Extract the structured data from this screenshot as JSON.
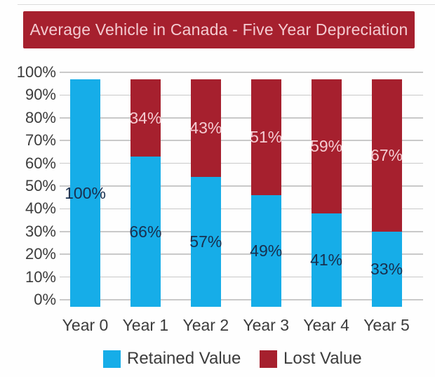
{
  "title": "Average Vehicle in Canada - Five Year Depreciation",
  "colors": {
    "banner_bg": "#a6202e",
    "banner_text": "#f4cbd1",
    "retained": "#16ade8",
    "lost": "#a6202e",
    "retained_label_text": "#182f4e",
    "lost_label_text": "#f4cbd1",
    "axis_text": "#3c3c3c",
    "gridline": "#c9c9c9"
  },
  "chart_data": {
    "type": "bar",
    "stacked": true,
    "title": "Average Vehicle in Canada - Five Year Depreciation",
    "categories": [
      "Year 0",
      "Year 1",
      "Year 2",
      "Year 3",
      "Year 4",
      "Year 5"
    ],
    "series": [
      {
        "name": "Retained Value",
        "color": "#16ade8",
        "values": [
          100,
          66,
          57,
          49,
          41,
          33
        ]
      },
      {
        "name": "Lost Value",
        "color": "#a6202e",
        "values": [
          0,
          34,
          43,
          51,
          59,
          67
        ]
      }
    ],
    "value_suffix": "%",
    "y_ticks": [
      "100%",
      "90%",
      "80%",
      "70%",
      "60%",
      "50%",
      "40%",
      "30%",
      "20%",
      "10%",
      "0%"
    ],
    "ylim": [
      0,
      100
    ],
    "grid": true,
    "legend_position": "bottom"
  }
}
